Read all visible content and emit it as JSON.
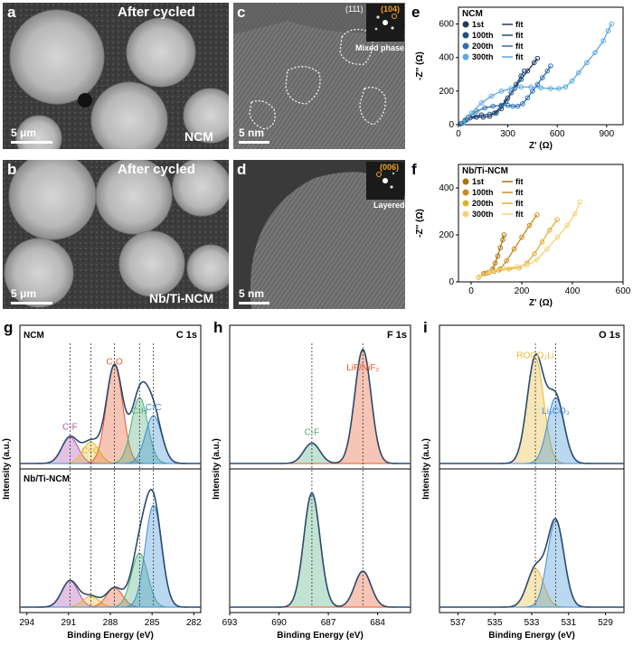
{
  "panels": {
    "a": {
      "letter": "a",
      "title": "After cycled",
      "label": "NCM",
      "scale": "5 μm"
    },
    "b": {
      "letter": "b",
      "title": "After cycled",
      "label": "Nb/Ti-NCM",
      "scale": "5 μm"
    },
    "c": {
      "letter": "c",
      "scale": "5 nm",
      "inset_labels": [
        "(111)",
        "(104)"
      ],
      "inset_caption": "Mixed phase"
    },
    "d": {
      "letter": "d",
      "scale": "5 nm",
      "inset_labels": [
        "(006)"
      ],
      "inset_caption": "Layered"
    },
    "e": {
      "letter": "e"
    },
    "f": {
      "letter": "f"
    },
    "g": {
      "letter": "g"
    },
    "h": {
      "letter": "h"
    },
    "i": {
      "letter": "i"
    }
  },
  "colors": {
    "dark_blue": "#223a5e",
    "mid_blue": "#2f6fb0",
    "light_blue": "#5aa8e0",
    "dark_gold": "#b8860b",
    "mid_gold": "#d9a520",
    "light_gold": "#f0cf6e",
    "envelope": "#2b4a6e",
    "peak_red": "#e8582e",
    "peak_green": "#4fae7a",
    "peak_blue": "#3c8ed6",
    "peak_purple": "#b04fb0",
    "peak_yellow": "#e8b830",
    "peak_orange": "#f08040"
  },
  "chart_data": [
    {
      "id": "e",
      "type": "scatter",
      "title": "NCM",
      "xlabel": "Z' (Ω)",
      "ylabel": "-Z'' (Ω)",
      "xlim": [
        0,
        1000
      ],
      "ylim": [
        0,
        700
      ],
      "xticks": [
        "0",
        "300",
        "600",
        "900"
      ],
      "yticks": [
        "0",
        "200",
        "400",
        "600"
      ],
      "legend": [
        "1st",
        "100th",
        "200th",
        "300th"
      ],
      "fit_label": "fit",
      "series": [
        {
          "name": "1st",
          "color": "#223a5e",
          "points": [
            [
              15,
              5
            ],
            [
              40,
              25
            ],
            [
              70,
              40
            ],
            [
              110,
              45
            ],
            [
              150,
              45
            ],
            [
              190,
              50
            ],
            [
              220,
              70
            ],
            [
              260,
              110
            ],
            [
              300,
              160
            ],
            [
              340,
              215
            ],
            [
              380,
              270
            ],
            [
              420,
              320
            ],
            [
              460,
              370
            ],
            [
              480,
              395
            ]
          ]
        },
        {
          "name": "100th",
          "color": "#1e4f80",
          "points": [
            [
              20,
              8
            ],
            [
              50,
              30
            ],
            [
              90,
              50
            ],
            [
              140,
              58
            ],
            [
              190,
              62
            ],
            [
              230,
              70
            ],
            [
              260,
              95
            ],
            [
              290,
              140
            ],
            [
              320,
              190
            ],
            [
              350,
              240
            ],
            [
              380,
              290
            ],
            [
              400,
              320
            ]
          ]
        },
        {
          "name": "200th",
          "color": "#2f6fb0",
          "points": [
            [
              20,
              8
            ],
            [
              60,
              45
            ],
            [
              110,
              80
            ],
            [
              160,
              100
            ],
            [
              210,
              110
            ],
            [
              260,
              115
            ],
            [
              300,
              115
            ],
            [
              330,
              110
            ],
            [
              360,
              110
            ],
            [
              390,
              125
            ],
            [
              420,
              160
            ],
            [
              450,
              200
            ],
            [
              480,
              240
            ],
            [
              510,
              280
            ],
            [
              540,
              320
            ],
            [
              560,
              350
            ]
          ]
        },
        {
          "name": "300th",
          "color": "#5aa8e0",
          "points": [
            [
              30,
              10
            ],
            [
              80,
              70
            ],
            [
              140,
              130
            ],
            [
              200,
              170
            ],
            [
              260,
              200
            ],
            [
              320,
              215
            ],
            [
              380,
              225
            ],
            [
              440,
              225
            ],
            [
              500,
              220
            ],
            [
              560,
              215
            ],
            [
              610,
              215
            ],
            [
              650,
              225
            ],
            [
              690,
              260
            ],
            [
              730,
              310
            ],
            [
              780,
              370
            ],
            [
              830,
              430
            ],
            [
              880,
              500
            ],
            [
              910,
              560
            ],
            [
              930,
              600
            ]
          ]
        }
      ]
    },
    {
      "id": "f",
      "type": "scatter",
      "title": "Nb/Ti-NCM",
      "xlabel": "Z' (Ω)",
      "ylabel": "-Z'' (Ω)",
      "xlim": [
        -50,
        600
      ],
      "ylim": [
        0,
        500
      ],
      "xticks": [
        "0",
        "200",
        "400",
        "600"
      ],
      "yticks": [
        "0",
        "200",
        "400"
      ],
      "legend": [
        "1st",
        "100th",
        "200th",
        "300th"
      ],
      "fit_label": "fit",
      "series": [
        {
          "name": "1st",
          "color": "#a87608",
          "points": [
            [
              30,
              20
            ],
            [
              50,
              35
            ],
            [
              70,
              40
            ],
            [
              85,
              55
            ],
            [
              95,
              80
            ],
            [
              105,
              110
            ],
            [
              115,
              145
            ],
            [
              125,
              180
            ],
            [
              130,
              200
            ]
          ]
        },
        {
          "name": "100th",
          "color": "#c98c18",
          "points": [
            [
              30,
              20
            ],
            [
              60,
              38
            ],
            [
              90,
              45
            ],
            [
              115,
              55
            ],
            [
              140,
              90
            ],
            [
              170,
              140
            ],
            [
              200,
              190
            ],
            [
              230,
              240
            ],
            [
              260,
              285
            ]
          ]
        },
        {
          "name": "200th",
          "color": "#e0b030",
          "points": [
            [
              30,
              20
            ],
            [
              70,
              40
            ],
            [
              110,
              50
            ],
            [
              150,
              55
            ],
            [
              190,
              60
            ],
            [
              220,
              80
            ],
            [
              250,
              120
            ],
            [
              280,
              170
            ],
            [
              310,
              220
            ],
            [
              340,
              265
            ]
          ]
        },
        {
          "name": "300th",
          "color": "#f3d27a",
          "points": [
            [
              30,
              22
            ],
            [
              80,
              45
            ],
            [
              130,
              58
            ],
            [
              180,
              65
            ],
            [
              220,
              70
            ],
            [
              260,
              95
            ],
            [
              300,
              140
            ],
            [
              340,
              190
            ],
            [
              380,
              240
            ],
            [
              410,
              290
            ],
            [
              430,
              340
            ]
          ]
        }
      ]
    },
    {
      "id": "g",
      "type": "line",
      "title_top": "NCM",
      "title_bottom": "Nb/Ti-NCM",
      "core_level": "C 1s",
      "xlabel": "Binding Energy (eV)",
      "ylabel": "Intensity (a.u.)",
      "xlim": [
        294.5,
        281.5
      ],
      "xticks": [
        "294",
        "291",
        "288",
        "285",
        "282"
      ],
      "peak_labels": [
        "C-F",
        "C=O",
        "C-O",
        "C-H",
        "C-C"
      ],
      "peaks": [
        {
          "label": "C-F",
          "center": 290.9,
          "color": "#b04fb0",
          "top": 0.22,
          "bottom": 0.22
        },
        {
          "label": "C=O",
          "center": 289.4,
          "color": "#e8b830",
          "top": 0.18,
          "bottom": 0.09
        },
        {
          "label": "C-O",
          "center": 287.7,
          "color": "#e8582e",
          "top": 0.82,
          "bottom": 0.16
        },
        {
          "label": "C-H",
          "center": 285.9,
          "color": "#4fae7a",
          "top": 0.55,
          "bottom": 0.45
        },
        {
          "label": "C-C",
          "center": 284.9,
          "color": "#3c8ed6",
          "top": 0.4,
          "bottom": 0.85
        }
      ]
    },
    {
      "id": "h",
      "type": "line",
      "core_level": "F 1s",
      "xlabel": "Binding Energy (eV)",
      "ylabel": "Intensity (a.u.)",
      "xlim": [
        693,
        682
      ],
      "xticks": [
        "693",
        "690",
        "687",
        "684"
      ],
      "peak_labels": [
        "C-F",
        "LiF/NiF₂"
      ],
      "peaks": [
        {
          "label": "C-F",
          "center": 688.0,
          "color": "#4fae7a",
          "top": 0.17,
          "bottom": 0.95
        },
        {
          "label": "LiF/NiF₂",
          "center": 684.9,
          "color": "#e8582e",
          "top": 0.95,
          "bottom": 0.3
        }
      ]
    },
    {
      "id": "i",
      "type": "line",
      "core_level": "O 1s",
      "xlabel": "Binding Energy (eV)",
      "ylabel": "Intensity (a.u.)",
      "xlim": [
        538,
        528
      ],
      "xticks": [
        "537",
        "535",
        "533",
        "531",
        "529"
      ],
      "peak_labels": [
        "ROCO₂Li",
        "Li₂CO₃"
      ],
      "peaks": [
        {
          "label": "ROCO₂Li",
          "center": 532.8,
          "color": "#e8b830",
          "top": 0.88,
          "bottom": 0.32
        },
        {
          "label": "Li₂CO₃",
          "center": 531.7,
          "color": "#3c8ed6",
          "top": 0.55,
          "bottom": 0.72
        }
      ]
    }
  ]
}
